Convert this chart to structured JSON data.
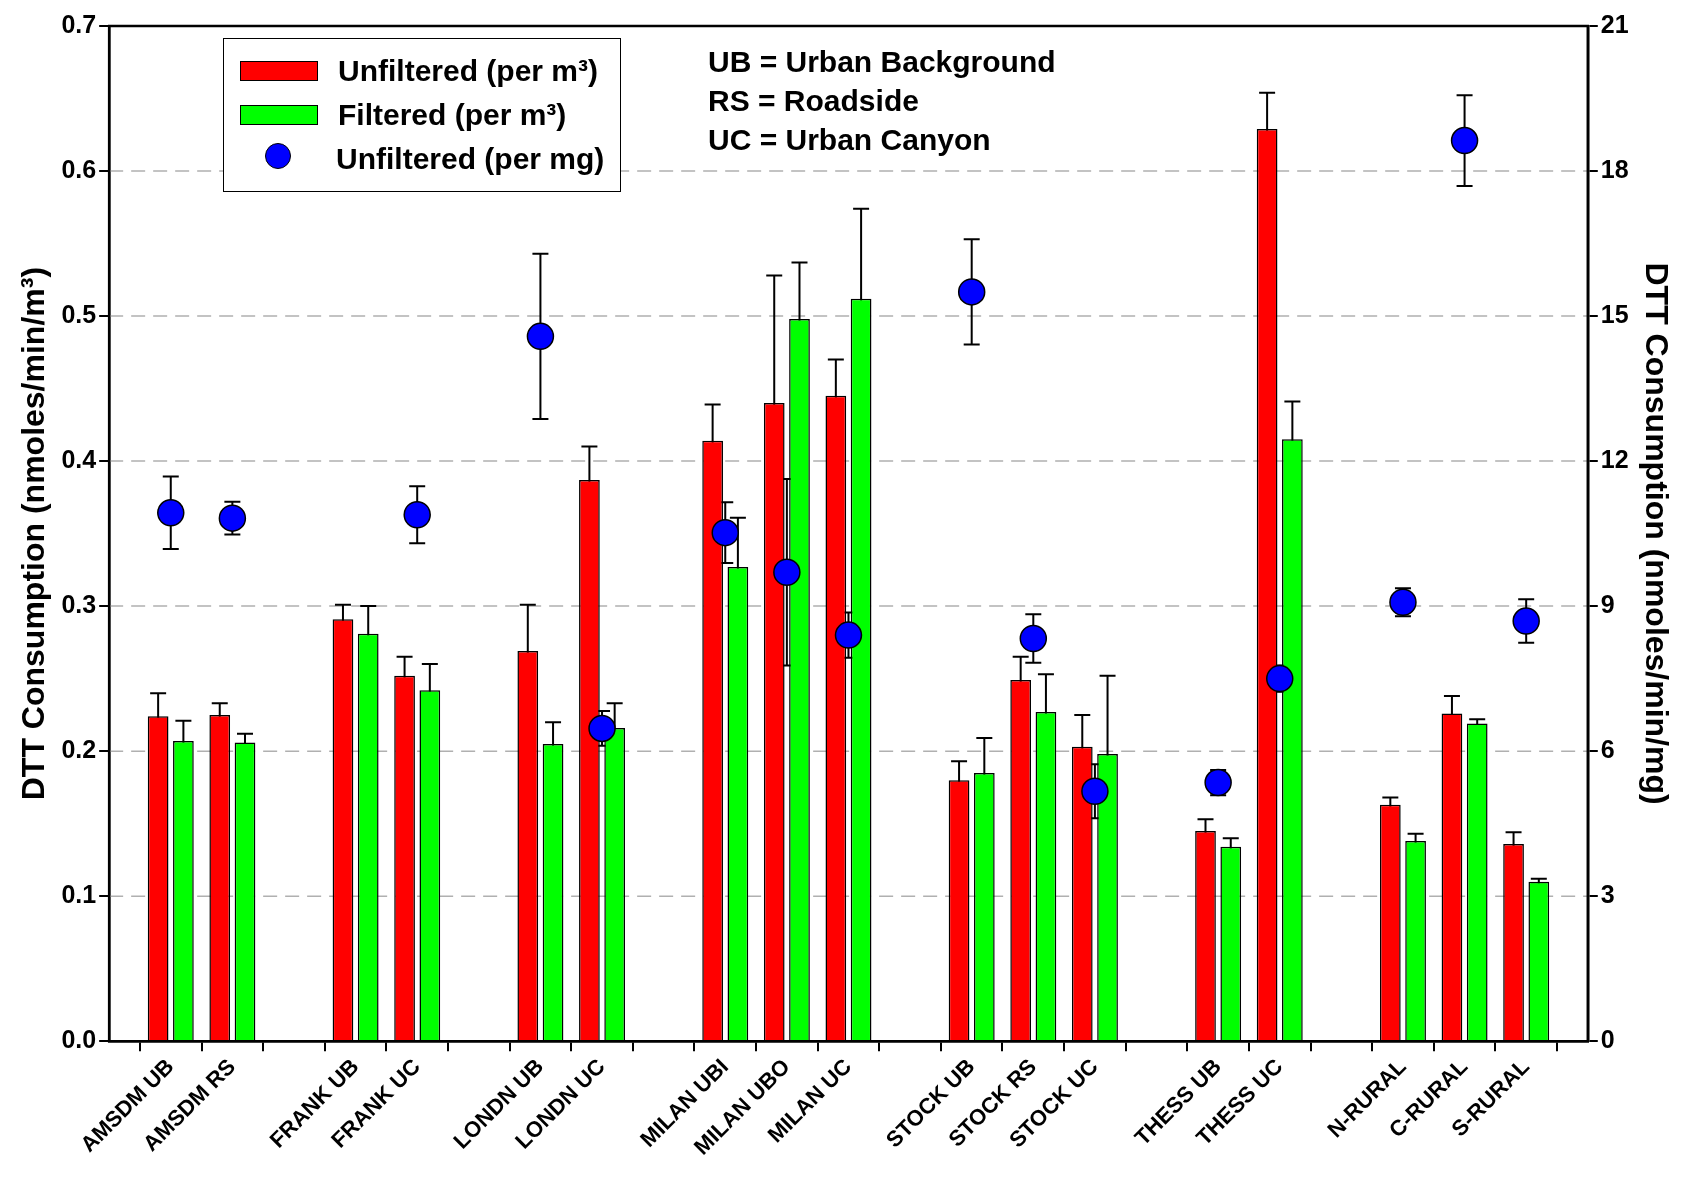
{
  "chart_data": {
    "type": "bar",
    "categories": [
      null,
      "AMSDM UB",
      "AMSDM RS",
      null,
      "FRANK UB",
      "FRANK UC",
      null,
      "LONDN UB",
      "LONDN UC",
      null,
      "MILAN UBI",
      "MILAN UBO",
      "MILAN UC",
      null,
      "STOCK UB",
      "STOCK RS",
      "STOCK UC",
      null,
      "THESS UB",
      "THESS UC",
      null,
      "N-RURAL",
      "C-RURAL",
      "S-RURAL",
      null
    ],
    "series": [
      {
        "name": "Unfiltered (per m³)",
        "color": "#ff0000",
        "values": [
          null,
          0.224,
          0.225,
          null,
          0.291,
          0.252,
          null,
          0.269,
          0.387,
          null,
          0.414,
          0.44,
          0.445,
          null,
          0.18,
          0.249,
          0.203,
          null,
          0.145,
          0.629,
          null,
          0.163,
          0.226,
          0.136,
          null
        ],
        "errors": [
          null,
          0.016,
          0.008,
          null,
          0.01,
          0.013,
          null,
          0.032,
          0.023,
          null,
          0.025,
          0.088,
          0.025,
          null,
          0.013,
          0.016,
          0.022,
          null,
          0.008,
          0.025,
          null,
          0.005,
          0.012,
          0.008,
          null
        ]
      },
      {
        "name": "Filtered (per m³)",
        "color": "#00ff00",
        "values": [
          null,
          0.207,
          0.206,
          null,
          0.281,
          0.242,
          null,
          0.205,
          0.216,
          null,
          0.327,
          0.498,
          0.512,
          null,
          0.185,
          0.227,
          0.198,
          null,
          0.134,
          0.415,
          null,
          0.138,
          0.219,
          0.11,
          null
        ],
        "errors": [
          null,
          0.014,
          0.006,
          null,
          0.019,
          0.018,
          null,
          0.015,
          0.017,
          null,
          0.034,
          0.039,
          0.062,
          null,
          0.024,
          0.026,
          0.054,
          null,
          0.006,
          0.026,
          null,
          0.005,
          0.003,
          0.002,
          null
        ]
      },
      {
        "name": "Unfiltered (per mg)",
        "type": "scatter",
        "axis": "y2",
        "color": "#0000ff",
        "values": [
          null,
          10.93,
          10.82,
          null,
          null,
          10.89,
          null,
          14.58,
          6.47,
          null,
          10.52,
          9.7,
          8.4,
          null,
          15.5,
          8.33,
          5.17,
          null,
          5.35,
          7.5,
          null,
          9.08,
          18.63,
          8.69,
          null
        ],
        "errors": [
          null,
          0.75,
          0.34,
          null,
          null,
          0.59,
          null,
          1.71,
          0.36,
          null,
          0.63,
          1.93,
          0.47,
          null,
          1.09,
          0.5,
          0.56,
          null,
          0.26,
          0.27,
          null,
          0.29,
          0.94,
          0.45,
          null
        ]
      }
    ],
    "ylabel": "DTT Consumption (nmoles/min/m³)",
    "y2label": "DTT Consumption (nmoles/min/mg)",
    "ylim": [
      0,
      0.7
    ],
    "yticks": [
      {
        "value": 0,
        "label": "0.0"
      },
      0.1,
      0.2,
      0.3,
      0.4,
      0.5,
      0.6,
      0.7
    ],
    "y2lim": [
      0,
      21
    ],
    "y2ticks": [
      0,
      3,
      6,
      9,
      12,
      15,
      18,
      21
    ],
    "annotations": [
      "UB = Urban Background",
      "RS = Roadside",
      "UC = Urban Canyon"
    ],
    "grid": "y",
    "legend": "top left",
    "marker": "circle"
  }
}
